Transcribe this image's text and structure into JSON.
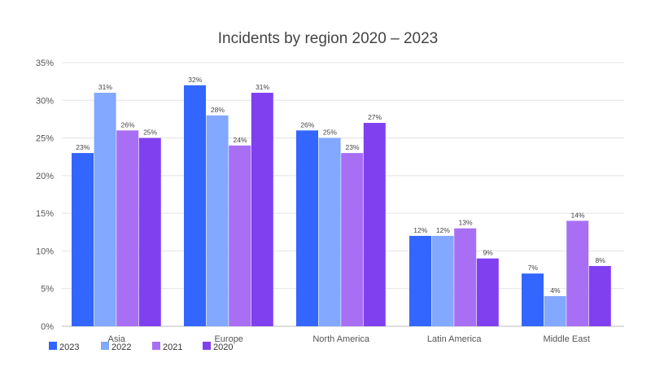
{
  "chart_data": {
    "type": "bar",
    "title": "Incidents by region 2020 – 2023",
    "xlabel": "",
    "ylabel": "",
    "categories": [
      "Asia",
      "Europe",
      "North America",
      "Latin America",
      "Middle East"
    ],
    "ylim": [
      0,
      35
    ],
    "y_ticks": [
      "0%",
      "5%",
      "10%",
      "15%",
      "20%",
      "25%",
      "30%",
      "35%"
    ],
    "y_tick_values": [
      0,
      5,
      10,
      15,
      20,
      25,
      30,
      35
    ],
    "grid": true,
    "legend_position": "bottom-left",
    "value_suffix": "%",
    "series": [
      {
        "name": "2023",
        "color": "#3366ff",
        "values": [
          23,
          32,
          26,
          12,
          7
        ]
      },
      {
        "name": "2022",
        "color": "#82a8ff",
        "values": [
          31,
          28,
          25,
          12,
          4
        ]
      },
      {
        "name": "2021",
        "color": "#a86ff5",
        "values": [
          26,
          24,
          23,
          13,
          14
        ]
      },
      {
        "name": "2020",
        "color": "#8040f0",
        "values": [
          25,
          31,
          27,
          9,
          8
        ]
      }
    ]
  }
}
